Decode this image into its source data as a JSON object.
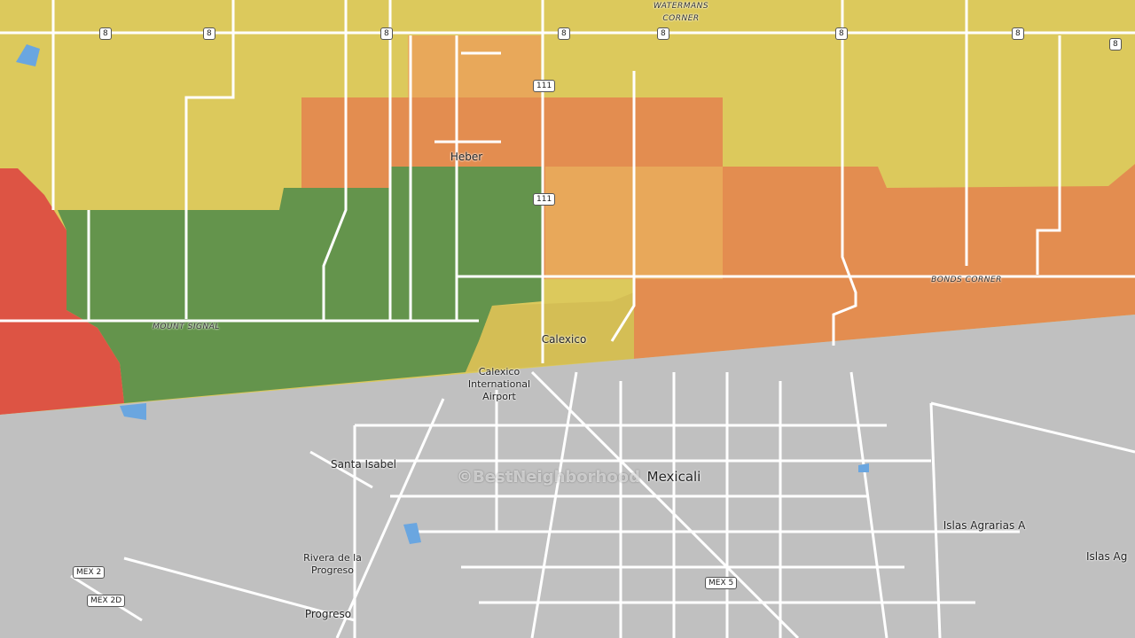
{
  "map": {
    "labels": [
      "WATERMANS CORNER",
      "Heber",
      "MOUNT SIGNAL",
      "BONDS CORNER",
      "Calexico",
      "Calexico International Airport",
      "Santa Isabel",
      "Mexicali",
      "Islas Agrarias A",
      "Islas Ag",
      "Rivera de la Progreso",
      "Progreso"
    ],
    "shields": [
      "8",
      "8",
      "8",
      "8",
      "8",
      "8",
      "8",
      "8",
      "111",
      "111",
      "MEX 2",
      "MEX 2D",
      "MEX 5"
    ],
    "watermark": "©BestNeighborhood"
  }
}
